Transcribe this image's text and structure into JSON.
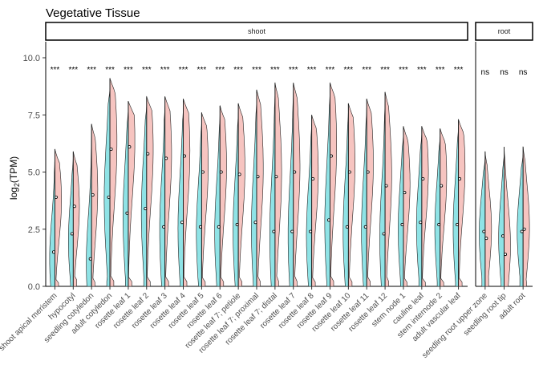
{
  "chart_data": {
    "type": "split-violin",
    "title": "Vegetative Tissue",
    "ylabel_main": "log",
    "ylabel_sub": "2",
    "ylabel_rest": "(TPM)",
    "ylim": [
      0,
      10.8
    ],
    "yticks": [
      "0.0",
      "2.5",
      "5.0",
      "7.5",
      "10.0"
    ],
    "ytick_values": [
      0,
      2.5,
      5,
      7.5,
      10
    ],
    "fill_colors": {
      "left": "#8fe3e6",
      "right": "#f6c4c0"
    },
    "facets": [
      {
        "label": "shoot",
        "categories": [
          {
            "name": "shoot apical meristem",
            "sig": "***",
            "ymax": 6.0,
            "left_med": 1.5,
            "right_med": 3.9,
            "left_w": 0.6,
            "right_w": 0.75,
            "left_peak": 1.2,
            "right_peak": 3.8
          },
          {
            "name": "hypocotyl",
            "sig": "***",
            "ymax": 5.9,
            "left_med": 2.3,
            "right_med": 3.5,
            "left_w": 0.55,
            "right_w": 0.7,
            "left_peak": 2.0,
            "right_peak": 3.5
          },
          {
            "name": "seedling cotyledon",
            "sig": "***",
            "ymax": 7.1,
            "left_med": 1.2,
            "right_med": 4.0,
            "left_w": 0.6,
            "right_w": 0.7,
            "left_peak": 1.0,
            "right_peak": 4.2
          },
          {
            "name": "adult cotyledon",
            "sig": "***",
            "ymax": 9.1,
            "left_med": 3.9,
            "right_med": 6.0,
            "left_w": 0.65,
            "right_w": 0.8,
            "left_peak": 3.8,
            "right_peak": 6.3
          },
          {
            "name": "rosette leaf 1",
            "sig": "***",
            "ymax": 8.1,
            "left_med": 3.2,
            "right_med": 6.1,
            "left_w": 0.6,
            "right_w": 0.75,
            "left_peak": 3.0,
            "right_peak": 6.4
          },
          {
            "name": "rosette leaf 2",
            "sig": "***",
            "ymax": 8.3,
            "left_med": 3.4,
            "right_med": 5.8,
            "left_w": 0.6,
            "right_w": 0.75,
            "left_peak": 3.2,
            "right_peak": 6.0
          },
          {
            "name": "rosette leaf 3",
            "sig": "***",
            "ymax": 8.3,
            "left_med": 2.6,
            "right_med": 5.6,
            "left_w": 0.6,
            "right_w": 0.75,
            "left_peak": 2.4,
            "right_peak": 5.8
          },
          {
            "name": "rosette leaf 4",
            "sig": "***",
            "ymax": 8.2,
            "left_med": 2.8,
            "right_med": 5.7,
            "left_w": 0.6,
            "right_w": 0.75,
            "left_peak": 2.5,
            "right_peak": 5.9
          },
          {
            "name": "rosette leaf 5",
            "sig": "***",
            "ymax": 7.6,
            "left_med": 2.6,
            "right_med": 5.0,
            "left_w": 0.6,
            "right_w": 0.75,
            "left_peak": 2.3,
            "right_peak": 5.3
          },
          {
            "name": "rosette leaf 6",
            "sig": "***",
            "ymax": 7.9,
            "left_med": 2.6,
            "right_med": 5.0,
            "left_w": 0.6,
            "right_w": 0.75,
            "left_peak": 2.3,
            "right_peak": 5.3
          },
          {
            "name": "rosette leaf 7; petiole",
            "sig": "***",
            "ymax": 8.0,
            "left_med": 2.7,
            "right_med": 4.9,
            "left_w": 0.6,
            "right_w": 0.75,
            "left_peak": 2.4,
            "right_peak": 5.2
          },
          {
            "name": "rosette leaf 7; proximal",
            "sig": "***",
            "ymax": 8.6,
            "left_med": 2.8,
            "right_med": 4.8,
            "left_w": 0.6,
            "right_w": 0.75,
            "left_peak": 2.5,
            "right_peak": 5.2
          },
          {
            "name": "rosette leaf 7; distal",
            "sig": "***",
            "ymax": 8.9,
            "left_med": 2.4,
            "right_med": 4.8,
            "left_w": 0.6,
            "right_w": 0.75,
            "left_peak": 2.2,
            "right_peak": 5.0
          },
          {
            "name": "rosette leaf 7",
            "sig": "***",
            "ymax": 8.9,
            "left_med": 2.4,
            "right_med": 5.0,
            "left_w": 0.6,
            "right_w": 0.75,
            "left_peak": 2.2,
            "right_peak": 5.3
          },
          {
            "name": "rosette leaf 8",
            "sig": "***",
            "ymax": 7.5,
            "left_med": 2.4,
            "right_med": 4.7,
            "left_w": 0.6,
            "right_w": 0.75,
            "left_peak": 2.2,
            "right_peak": 5.0
          },
          {
            "name": "rosette leaf 9",
            "sig": "***",
            "ymax": 8.9,
            "left_med": 2.9,
            "right_med": 5.7,
            "left_w": 0.6,
            "right_w": 0.75,
            "left_peak": 2.7,
            "right_peak": 6.2
          },
          {
            "name": "rosette leaf 10",
            "sig": "***",
            "ymax": 8.0,
            "left_med": 2.6,
            "right_med": 5.0,
            "left_w": 0.6,
            "right_w": 0.75,
            "left_peak": 2.4,
            "right_peak": 5.4
          },
          {
            "name": "rosette leaf 11",
            "sig": "***",
            "ymax": 8.2,
            "left_med": 2.6,
            "right_med": 5.0,
            "left_w": 0.6,
            "right_w": 0.75,
            "left_peak": 2.4,
            "right_peak": 5.4
          },
          {
            "name": "rosette leaf 12",
            "sig": "***",
            "ymax": 8.5,
            "left_med": 2.3,
            "right_med": 4.4,
            "left_w": 0.6,
            "right_w": 0.75,
            "left_peak": 2.1,
            "right_peak": 4.9
          },
          {
            "name": "stem node 1",
            "sig": "***",
            "ymax": 7.0,
            "left_med": 2.7,
            "right_med": 4.1,
            "left_w": 0.6,
            "right_w": 0.75,
            "left_peak": 2.5,
            "right_peak": 4.5
          },
          {
            "name": "cauline leaf",
            "sig": "***",
            "ymax": 7.0,
            "left_med": 2.8,
            "right_med": 4.7,
            "left_w": 0.6,
            "right_w": 0.75,
            "left_peak": 2.6,
            "right_peak": 5.0
          },
          {
            "name": "stem internode 2",
            "sig": "***",
            "ymax": 6.9,
            "left_med": 2.7,
            "right_med": 4.4,
            "left_w": 0.6,
            "right_w": 0.75,
            "left_peak": 2.5,
            "right_peak": 4.8
          },
          {
            "name": "adult vascular leaf",
            "sig": "***",
            "ymax": 7.3,
            "left_med": 2.7,
            "right_med": 4.7,
            "left_w": 0.6,
            "right_w": 0.75,
            "left_peak": 2.5,
            "right_peak": 5.2
          }
        ]
      },
      {
        "label": "root",
        "categories": [
          {
            "name": "seedling root upper zone",
            "sig": "ns",
            "ymax": 5.9,
            "left_med": 2.4,
            "right_med": 2.1,
            "left_w": 0.65,
            "right_w": 0.7,
            "left_peak": 2.3,
            "right_peak": 2.5
          },
          {
            "name": "seedling root tip",
            "sig": "ns",
            "ymax": 6.1,
            "left_med": 2.2,
            "right_med": 1.4,
            "left_w": 0.6,
            "right_w": 0.7,
            "left_peak": 2.1,
            "right_peak": 1.8
          },
          {
            "name": "adult root",
            "sig": "ns",
            "ymax": 6.1,
            "left_med": 2.4,
            "right_med": 2.5,
            "left_w": 0.65,
            "right_w": 0.7,
            "left_peak": 2.4,
            "right_peak": 2.6
          }
        ]
      }
    ]
  }
}
